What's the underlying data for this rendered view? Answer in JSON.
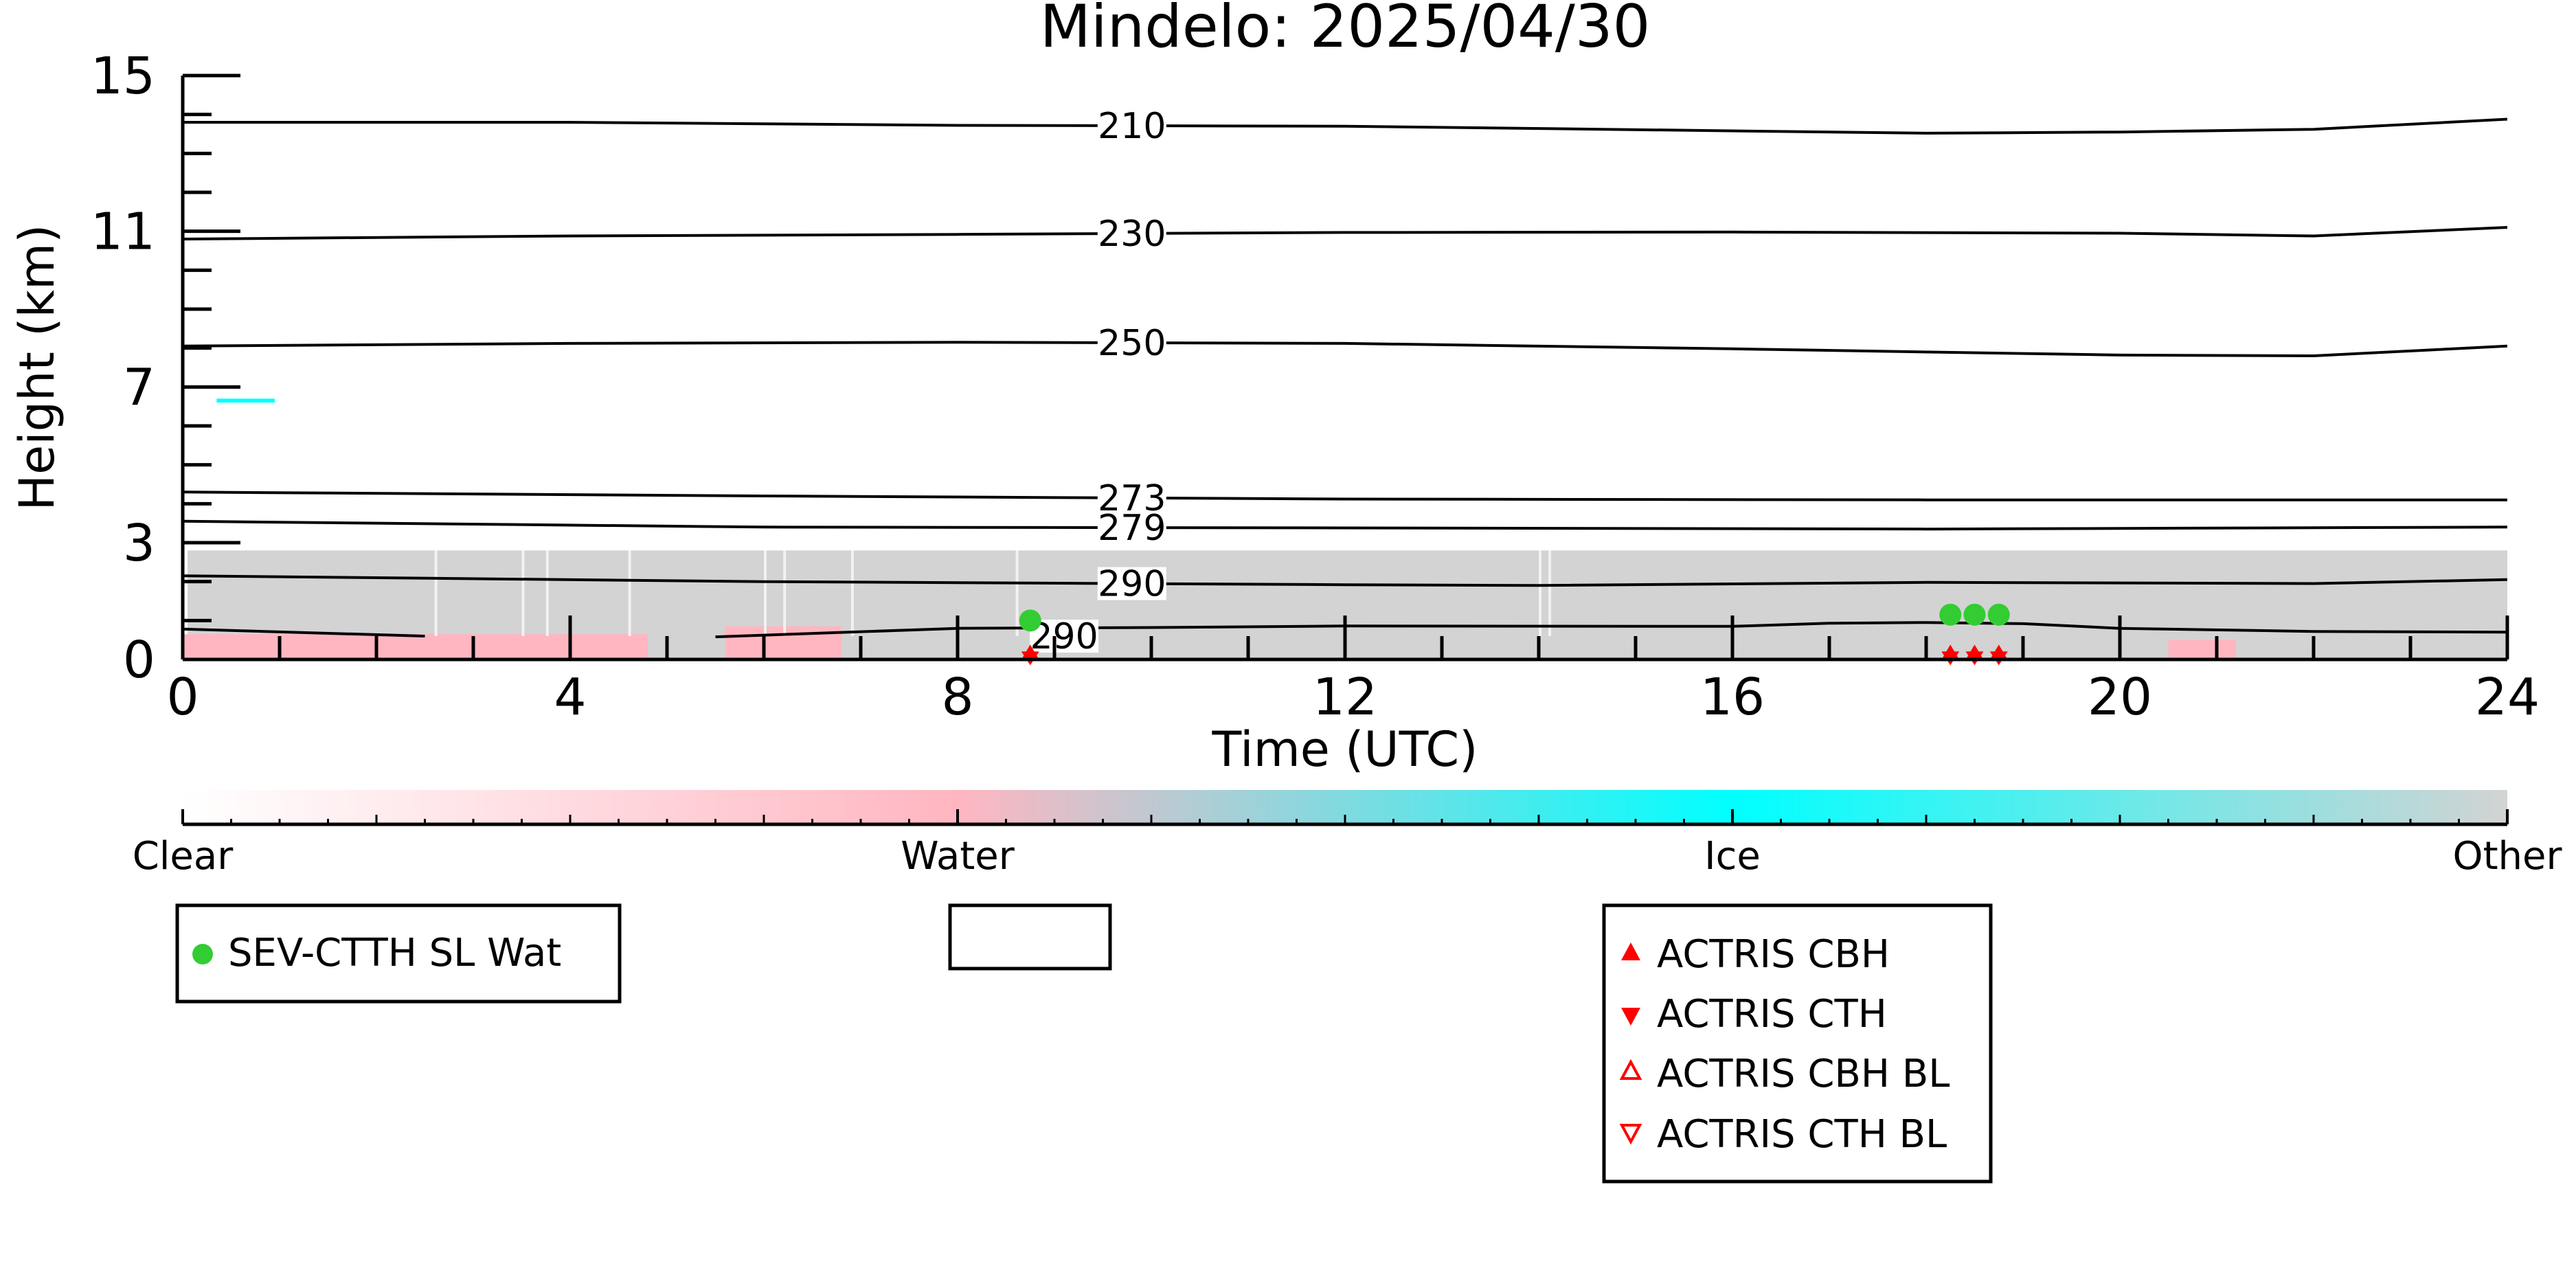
{
  "chart_data": {
    "type": "heatmap",
    "title": "Mindelo: 2025/04/30",
    "xlabel": "Time (UTC)",
    "ylabel": "Height (km)",
    "xlim": [
      0,
      24
    ],
    "ylim": [
      0,
      15
    ],
    "x_ticks": [
      "0",
      "4",
      "8",
      "12",
      "16",
      "20",
      "24"
    ],
    "y_ticks": [
      "0",
      "3",
      "7",
      "11",
      "15"
    ],
    "colorbar": {
      "labels": [
        "Clear",
        "Water",
        "Ice",
        "Other"
      ],
      "colors": [
        "#ffffff",
        "#ffb6c1",
        "#00ffff",
        "#d3d3d3"
      ]
    },
    "isotherms": [
      {
        "label": "210",
        "label_time": 9.8,
        "points": [
          [
            0,
            13.8
          ],
          [
            4,
            13.8
          ],
          [
            8,
            13.72
          ],
          [
            12,
            13.7
          ],
          [
            16,
            13.58
          ],
          [
            18,
            13.52
          ],
          [
            20,
            13.55
          ],
          [
            22,
            13.62
          ],
          [
            24,
            13.88
          ]
        ]
      },
      {
        "label": "230",
        "label_time": 9.8,
        "points": [
          [
            0,
            10.8
          ],
          [
            4,
            10.88
          ],
          [
            8,
            10.92
          ],
          [
            12,
            10.97
          ],
          [
            16,
            10.98
          ],
          [
            20,
            10.95
          ],
          [
            22,
            10.88
          ],
          [
            24,
            11.1
          ]
        ]
      },
      {
        "label": "250",
        "label_time": 9.8,
        "points": [
          [
            0,
            8.05
          ],
          [
            4,
            8.12
          ],
          [
            8,
            8.15
          ],
          [
            12,
            8.12
          ],
          [
            16,
            7.98
          ],
          [
            20,
            7.82
          ],
          [
            22,
            7.8
          ],
          [
            24,
            8.05
          ]
        ]
      },
      {
        "label": "273",
        "label_time": 9.8,
        "points": [
          [
            0,
            4.3
          ],
          [
            6,
            4.2
          ],
          [
            12,
            4.12
          ],
          [
            18,
            4.1
          ],
          [
            24,
            4.1
          ]
        ]
      },
      {
        "label": "279",
        "label_time": 9.8,
        "points": [
          [
            0,
            3.55
          ],
          [
            6,
            3.4
          ],
          [
            12,
            3.38
          ],
          [
            18,
            3.35
          ],
          [
            24,
            3.4
          ]
        ]
      },
      {
        "label": "290",
        "label_time": 9.8,
        "points": [
          [
            0,
            2.15
          ],
          [
            6,
            2.0
          ],
          [
            12,
            1.92
          ],
          [
            14,
            1.9
          ],
          [
            18,
            1.98
          ],
          [
            22,
            1.95
          ],
          [
            24,
            2.05
          ]
        ]
      },
      {
        "label": "290",
        "label_time": 9.1,
        "points": [
          [
            0,
            0.78
          ],
          [
            2.5,
            0.6
          ]
        ]
      },
      {
        "label": "",
        "label_time": null,
        "points": [
          [
            5.5,
            0.58
          ],
          [
            8,
            0.8
          ],
          [
            10,
            0.82
          ],
          [
            12,
            0.86
          ],
          [
            16,
            0.85
          ],
          [
            17,
            0.93
          ],
          [
            18,
            0.95
          ],
          [
            19,
            0.92
          ],
          [
            20,
            0.8
          ],
          [
            22,
            0.72
          ],
          [
            24,
            0.7
          ]
        ]
      }
    ],
    "cloud_layers": [
      {
        "class": "Other",
        "color": "#d3d3d3",
        "time_start": 0.05,
        "time_end": 24,
        "height_base": 0,
        "height_top": 2.8
      },
      {
        "class": "Water",
        "color": "#ffb6c1",
        "time_start": 0,
        "time_end": 4.8,
        "height_base": 0,
        "height_top": 0.65
      },
      {
        "class": "Water",
        "color": "#ffb6c1",
        "time_start": 5.6,
        "time_end": 6.8,
        "height_base": 0,
        "height_top": 0.85
      },
      {
        "class": "Water",
        "color": "#ffb6c1",
        "time_start": 20.5,
        "time_end": 21.2,
        "height_base": 0,
        "height_top": 0.5
      },
      {
        "class": "Ice",
        "color": "#00ffff",
        "time_start": 0.35,
        "time_end": 0.95,
        "height_base": 6.6,
        "height_top": 6.7
      }
    ],
    "series": [
      {
        "name": "SEV-CTTH SL Wat",
        "marker": "filled-circle",
        "color": "#33cc33",
        "points": [
          [
            8.75,
            1.0
          ],
          [
            18.25,
            1.15
          ],
          [
            18.5,
            1.15
          ],
          [
            18.75,
            1.15
          ]
        ]
      },
      {
        "name": "ACTRIS CBH",
        "marker": "filled-triangle-up",
        "color": "#ff0000",
        "points": [
          [
            8.75,
            0.1
          ],
          [
            18.25,
            0.1
          ],
          [
            18.5,
            0.1
          ],
          [
            18.75,
            0.1
          ]
        ]
      },
      {
        "name": "ACTRIS CTH",
        "marker": "filled-triangle-down",
        "color": "#ff0000",
        "points": [
          [
            8.75,
            0.1
          ],
          [
            18.25,
            0.1
          ],
          [
            18.5,
            0.1
          ],
          [
            18.75,
            0.1
          ]
        ]
      },
      {
        "name": "ACTRIS CBH BL",
        "marker": "open-triangle-up",
        "color": "#ff0000",
        "points": []
      },
      {
        "name": "ACTRIS CTH BL",
        "marker": "open-triangle-down",
        "color": "#ff0000",
        "points": []
      }
    ],
    "legends": [
      {
        "entries": [
          "SEV-CTTH SL Wat"
        ]
      },
      {
        "entries": []
      },
      {
        "entries": [
          "ACTRIS CBH",
          "ACTRIS CTH",
          "ACTRIS CBH BL",
          "ACTRIS CTH BL"
        ]
      }
    ]
  }
}
